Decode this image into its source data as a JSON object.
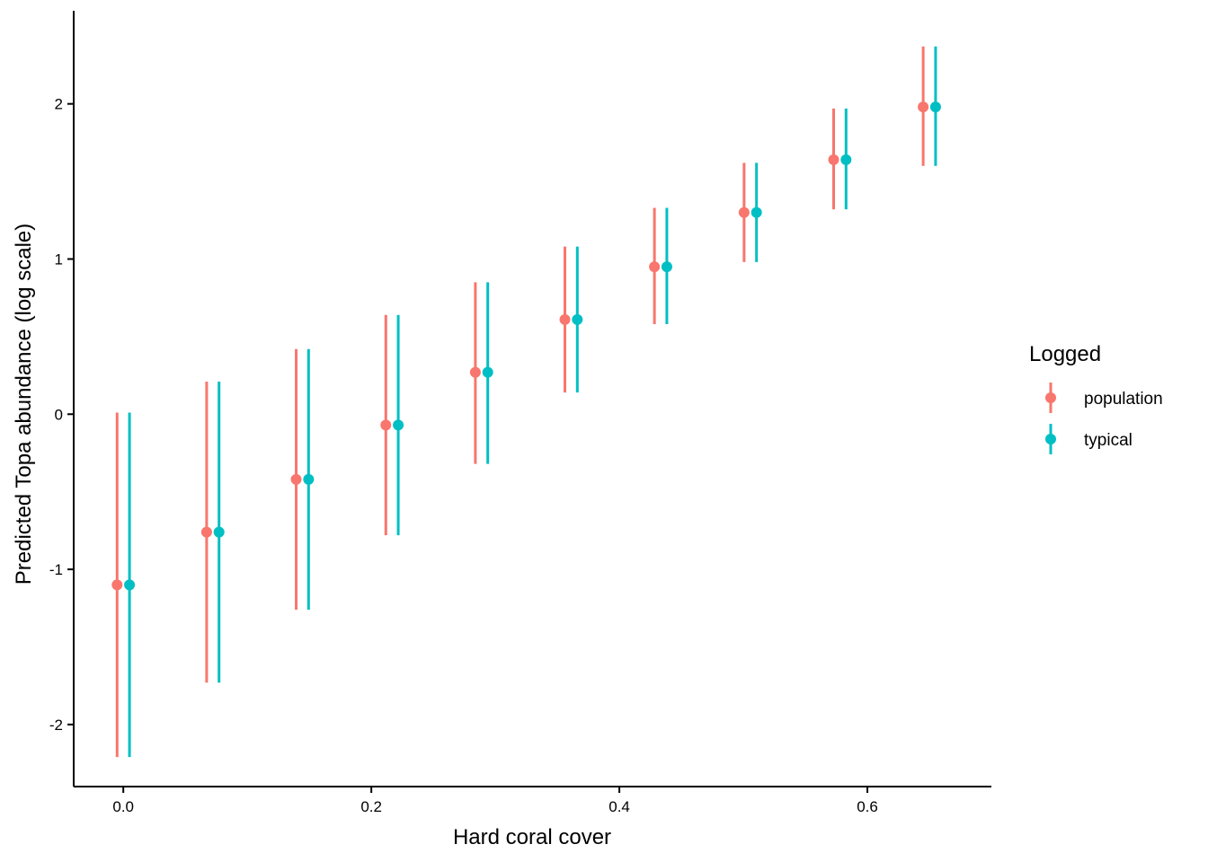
{
  "chart_data": {
    "type": "scatter",
    "title": "",
    "xlabel": "Hard coral cover",
    "ylabel": "Predicted Topa abundance (log scale)",
    "xlim": [
      -0.04,
      0.7
    ],
    "ylim": [
      -2.4,
      2.6
    ],
    "x_ticks": [
      0.0,
      0.2,
      0.4,
      0.6
    ],
    "x_tick_labels": [
      "0.0",
      "0.2",
      "0.4",
      "0.6"
    ],
    "y_ticks": [
      -2,
      -1,
      0,
      1,
      2
    ],
    "y_tick_labels": [
      "-2",
      "-1",
      "0",
      "1",
      "2"
    ],
    "grid": false,
    "legend": {
      "title": "Logged",
      "placement": "right",
      "entries": [
        "population",
        "typical"
      ]
    },
    "dodge": 0.01,
    "x": [
      0.0,
      0.0722,
      0.1444,
      0.2167,
      0.2889,
      0.3611,
      0.4333,
      0.5056,
      0.5778,
      0.65
    ],
    "series": [
      {
        "name": "population",
        "color": "#F8766D",
        "y": [
          -1.1,
          -0.76,
          -0.42,
          -0.07,
          0.27,
          0.61,
          0.95,
          1.3,
          1.64,
          1.98
        ],
        "lower": [
          -2.21,
          -1.73,
          -1.26,
          -0.78,
          -0.32,
          0.14,
          0.58,
          0.98,
          1.32,
          1.6
        ],
        "upper": [
          0.01,
          0.21,
          0.42,
          0.64,
          0.85,
          1.08,
          1.33,
          1.62,
          1.97,
          2.37
        ]
      },
      {
        "name": "typical",
        "color": "#00BFC4",
        "y": [
          -1.1,
          -0.76,
          -0.42,
          -0.07,
          0.27,
          0.61,
          0.95,
          1.3,
          1.64,
          1.98
        ],
        "lower": [
          -2.21,
          -1.73,
          -1.26,
          -0.78,
          -0.32,
          0.14,
          0.58,
          0.98,
          1.32,
          1.6
        ],
        "upper": [
          0.01,
          0.21,
          0.42,
          0.64,
          0.85,
          1.08,
          1.33,
          1.62,
          1.97,
          2.37
        ]
      }
    ]
  }
}
